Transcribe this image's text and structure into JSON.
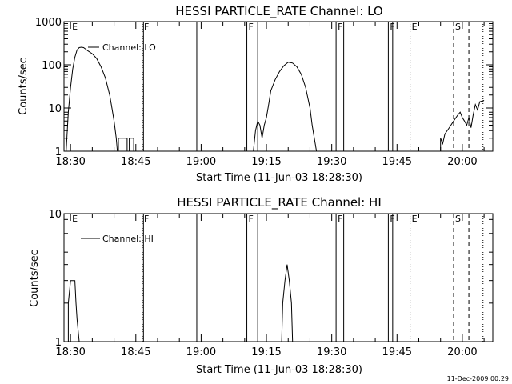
{
  "chart_data": [
    {
      "type": "line",
      "title": "HESSI PARTICLE_RATE Channel: LO",
      "xlabel": "Start Time (11-Jun-03 18:28:30)",
      "ylabel": "Counts/sec",
      "yscale": "log",
      "ylim": [
        1,
        1000
      ],
      "xlim": [
        "18:28:30",
        "20:07:00"
      ],
      "x_ticks": [
        "18:30",
        "18:45",
        "19:00",
        "19:15",
        "19:30",
        "19:45",
        "20:00"
      ],
      "y_ticks": [
        "1",
        "10",
        "100",
        "1000"
      ],
      "legend": {
        "position": "top-left",
        "entries": [
          "Channel: LO"
        ]
      },
      "series": [
        {
          "name": "Channel: LO",
          "color": "#000000",
          "segments": [
            [
              [
                "18:29:00",
                1
              ],
              [
                "18:29:15",
                3
              ],
              [
                "18:29:30",
                8
              ],
              [
                "18:30:00",
                30
              ],
              [
                "18:30:30",
                80
              ],
              [
                "18:31:00",
                150
              ],
              [
                "18:31:30",
                220
              ],
              [
                "18:32:00",
                250
              ],
              [
                "18:32:30",
                255
              ],
              [
                "18:33:00",
                250
              ],
              [
                "18:33:30",
                230
              ],
              [
                "18:34:00",
                210
              ],
              [
                "18:35:00",
                180
              ],
              [
                "18:36:00",
                140
              ],
              [
                "18:37:00",
                90
              ],
              [
                "18:38:00",
                50
              ],
              [
                "18:39:00",
                20
              ],
              [
                "18:39:30",
                10
              ],
              [
                "18:40:00",
                5
              ],
              [
                "18:40:30",
                2
              ],
              [
                "18:40:45",
                1
              ]
            ],
            [
              [
                "18:41:00",
                1
              ],
              [
                "18:41:00",
                2
              ],
              [
                "18:43:00",
                2
              ],
              [
                "18:43:00",
                1
              ]
            ],
            [
              [
                "18:43:30",
                1
              ],
              [
                "18:43:30",
                2
              ],
              [
                "18:44:30",
                2
              ],
              [
                "18:44:30",
                1
              ]
            ],
            [
              [
                "19:12:00",
                1
              ],
              [
                "19:12:30",
                3
              ],
              [
                "19:13:00",
                5
              ],
              [
                "19:13:30",
                4
              ],
              [
                "19:14:00",
                2
              ],
              [
                "19:14:30",
                4
              ],
              [
                "19:15:00",
                6
              ],
              [
                "19:15:30",
                12
              ],
              [
                "19:16:00",
                25
              ],
              [
                "19:17:00",
                45
              ],
              [
                "19:18:00",
                70
              ],
              [
                "19:19:00",
                95
              ],
              [
                "19:20:00",
                115
              ],
              [
                "19:21:00",
                110
              ],
              [
                "19:22:00",
                90
              ],
              [
                "19:23:00",
                60
              ],
              [
                "19:24:00",
                30
              ],
              [
                "19:25:00",
                10
              ],
              [
                "19:25:30",
                4
              ],
              [
                "19:26:00",
                2
              ],
              [
                "19:26:30",
                1
              ]
            ],
            [
              [
                "19:55:00",
                1
              ],
              [
                "19:55:00",
                2
              ],
              [
                "19:55:30",
                1.5
              ],
              [
                "19:56:00",
                2.5
              ],
              [
                "19:57:00",
                3.5
              ],
              [
                "19:58:00",
                5
              ],
              [
                "19:59:00",
                7
              ],
              [
                "19:59:30",
                8
              ],
              [
                "20:00:00",
                6
              ],
              [
                "20:00:30",
                5
              ],
              [
                "20:01:00",
                4
              ],
              [
                "20:01:30",
                6
              ],
              [
                "20:02:00",
                3.5
              ],
              [
                "20:02:30",
                7
              ],
              [
                "20:03:00",
                12
              ],
              [
                "20:03:30",
                9
              ],
              [
                "20:04:00",
                14
              ],
              [
                "20:05:00",
                15
              ]
            ]
          ]
        }
      ],
      "markers": [
        {
          "time": "18:30:00",
          "label": "E",
          "style": "none"
        },
        {
          "time": "18:46:30",
          "label": "F",
          "style": "dotted"
        },
        {
          "time": "18:46:45",
          "label": "",
          "style": "solid"
        },
        {
          "time": "18:59:00",
          "label": "",
          "style": "solid"
        },
        {
          "time": "19:10:30",
          "label": "F",
          "style": "solid"
        },
        {
          "time": "19:13:00",
          "label": "",
          "style": "solid"
        },
        {
          "time": "19:31:00",
          "label": "F",
          "style": "solid"
        },
        {
          "time": "19:32:45",
          "label": "",
          "style": "solid"
        },
        {
          "time": "19:43:00",
          "label": "F",
          "style": "solid"
        },
        {
          "time": "19:44:00",
          "label": "",
          "style": "solid"
        },
        {
          "time": "19:48:00",
          "label": "E",
          "style": "dotted"
        },
        {
          "time": "19:58:00",
          "label": "S",
          "style": "dashed"
        },
        {
          "time": "20:01:30",
          "label": "",
          "style": "dashed"
        },
        {
          "time": "20:04:45",
          "label": "",
          "style": "dotted"
        }
      ]
    },
    {
      "type": "line",
      "title": "HESSI PARTICLE_RATE Channel: HI",
      "xlabel": "Start Time (11-Jun-03 18:28:30)",
      "ylabel": "Counts/sec",
      "yscale": "log",
      "ylim": [
        1,
        10
      ],
      "xlim": [
        "18:28:30",
        "20:07:00"
      ],
      "x_ticks": [
        "18:30",
        "18:45",
        "19:00",
        "19:15",
        "19:30",
        "19:45",
        "20:00"
      ],
      "y_ticks": [
        "1",
        "10"
      ],
      "legend": {
        "position": "top-left",
        "entries": [
          "Channel: HI"
        ]
      },
      "series": [
        {
          "name": "Channel: HI",
          "color": "#000000",
          "segments": [
            [
              [
                "18:29:30",
                1
              ],
              [
                "18:29:30",
                2
              ],
              [
                "18:30:00",
                3
              ],
              [
                "18:31:00",
                3
              ],
              [
                "18:31:15",
                2
              ],
              [
                "18:31:30",
                1.5
              ],
              [
                "18:32:00",
                1
              ]
            ],
            [
              [
                "19:18:30",
                1
              ],
              [
                "19:18:45",
                2
              ],
              [
                "19:19:15",
                3
              ],
              [
                "19:19:45",
                4
              ],
              [
                "19:20:15",
                3
              ],
              [
                "19:20:45",
                2
              ],
              [
                "19:21:00",
                1
              ]
            ]
          ]
        }
      ],
      "markers": [
        {
          "time": "18:30:00",
          "label": "E",
          "style": "none"
        },
        {
          "time": "18:46:30",
          "label": "F",
          "style": "dotted"
        },
        {
          "time": "18:46:45",
          "label": "",
          "style": "solid"
        },
        {
          "time": "18:59:00",
          "label": "",
          "style": "solid"
        },
        {
          "time": "19:10:30",
          "label": "F",
          "style": "solid"
        },
        {
          "time": "19:13:00",
          "label": "",
          "style": "solid"
        },
        {
          "time": "19:31:00",
          "label": "F",
          "style": "solid"
        },
        {
          "time": "19:32:45",
          "label": "",
          "style": "solid"
        },
        {
          "time": "19:43:00",
          "label": "F",
          "style": "solid"
        },
        {
          "time": "19:44:00",
          "label": "",
          "style": "solid"
        },
        {
          "time": "19:48:00",
          "label": "E",
          "style": "dotted"
        },
        {
          "time": "19:58:00",
          "label": "S",
          "style": "dashed"
        },
        {
          "time": "20:01:30",
          "label": "",
          "style": "dashed"
        },
        {
          "time": "20:04:45",
          "label": "",
          "style": "dotted"
        }
      ]
    }
  ],
  "footer": {
    "date": "11-Dec-2009 00:29"
  }
}
